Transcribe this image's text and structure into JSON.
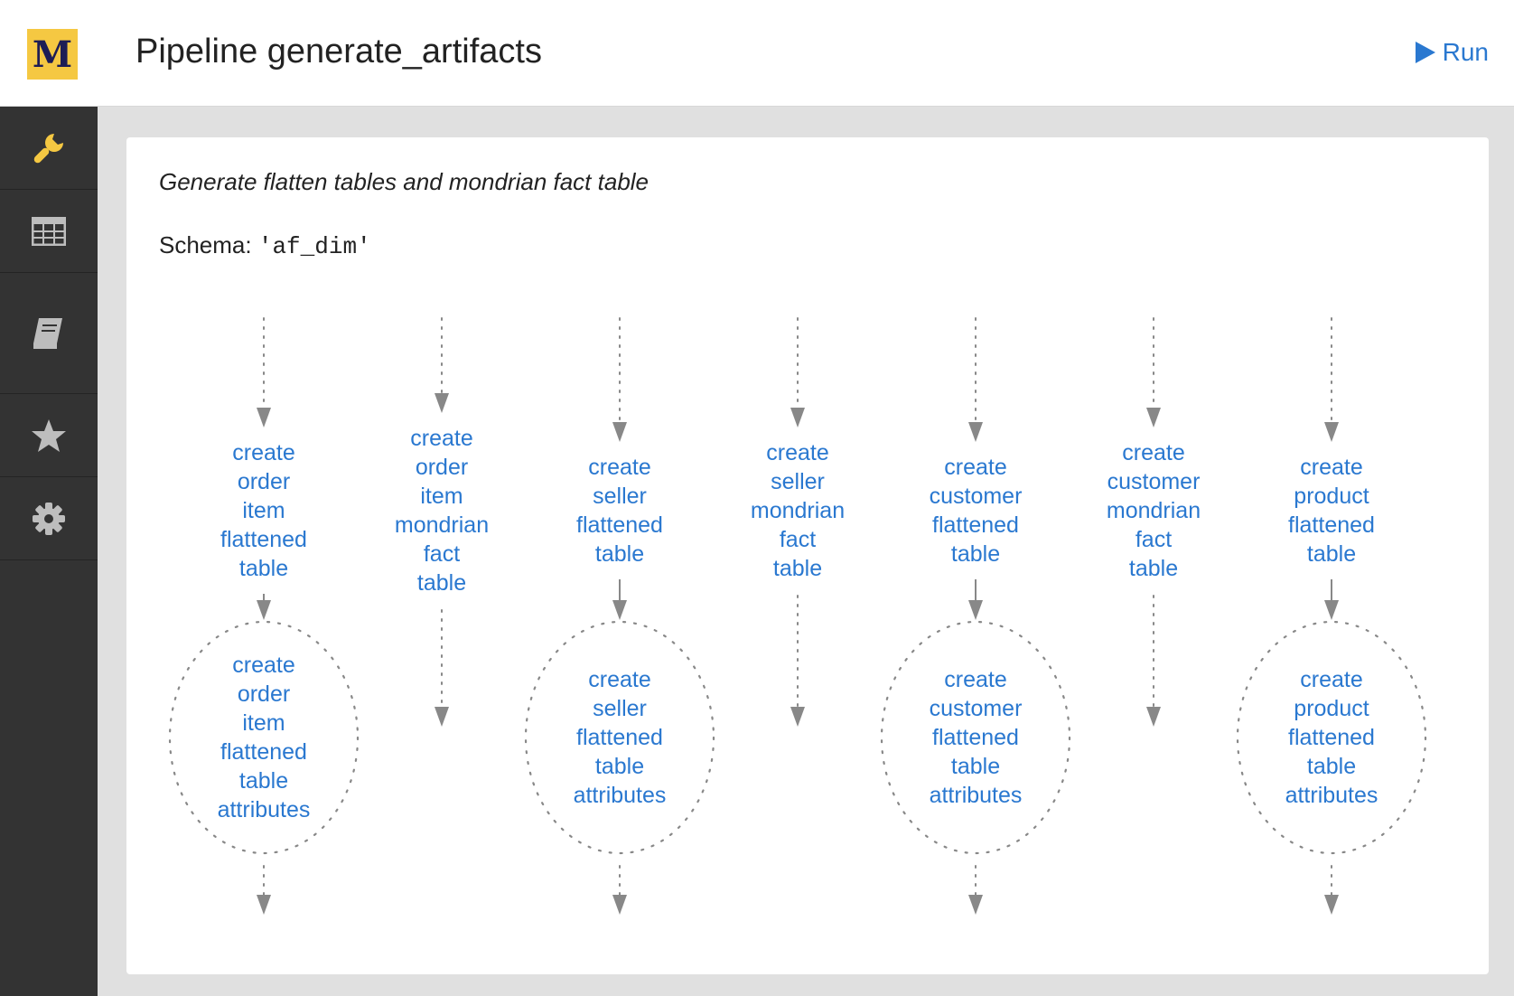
{
  "header": {
    "logo_letter": "M",
    "title": "Pipeline generate_artifacts",
    "run_label": "Run"
  },
  "sidebar": {
    "items": [
      {
        "icon": "wrench-icon",
        "active": true
      },
      {
        "icon": "table-icon"
      },
      {
        "icon": "book-icon"
      },
      {
        "icon": "star-icon"
      },
      {
        "icon": "gear-icon"
      }
    ]
  },
  "main": {
    "description": "Generate flatten tables and mondrian fact table",
    "schema_label": "Schema:",
    "schema_value": "'af_dim'"
  },
  "dag": {
    "columns": [
      {
        "top_label": [
          "create",
          "order",
          "item",
          "flattened",
          "table"
        ],
        "bottom_label": [
          "create",
          "order",
          "item",
          "flattened",
          "table",
          "attributes"
        ]
      },
      {
        "top_label": [
          "create",
          "order",
          "item",
          "mondrian",
          "fact",
          "table"
        ],
        "bottom_label": null
      },
      {
        "top_label": [
          "create",
          "seller",
          "flattened",
          "table"
        ],
        "bottom_label": [
          "create",
          "seller",
          "flattened",
          "table",
          "attributes"
        ]
      },
      {
        "top_label": [
          "create",
          "seller",
          "mondrian",
          "fact",
          "table"
        ],
        "bottom_label": null
      },
      {
        "top_label": [
          "create",
          "customer",
          "flattened",
          "table"
        ],
        "bottom_label": [
          "create",
          "customer",
          "flattened",
          "table",
          "attributes"
        ]
      },
      {
        "top_label": [
          "create",
          "customer",
          "mondrian",
          "fact",
          "table"
        ],
        "bottom_label": null
      },
      {
        "top_label": [
          "create",
          "product",
          "flattened",
          "table"
        ],
        "bottom_label": [
          "create",
          "product",
          "flattened",
          "table",
          "attributes"
        ]
      }
    ]
  },
  "colors": {
    "link": "#2a78d0",
    "sidebar": "#333333",
    "logo": "#f5c842",
    "active_icon": "#f5c842",
    "icon": "#bdbdbd",
    "arrow": "#888888"
  }
}
